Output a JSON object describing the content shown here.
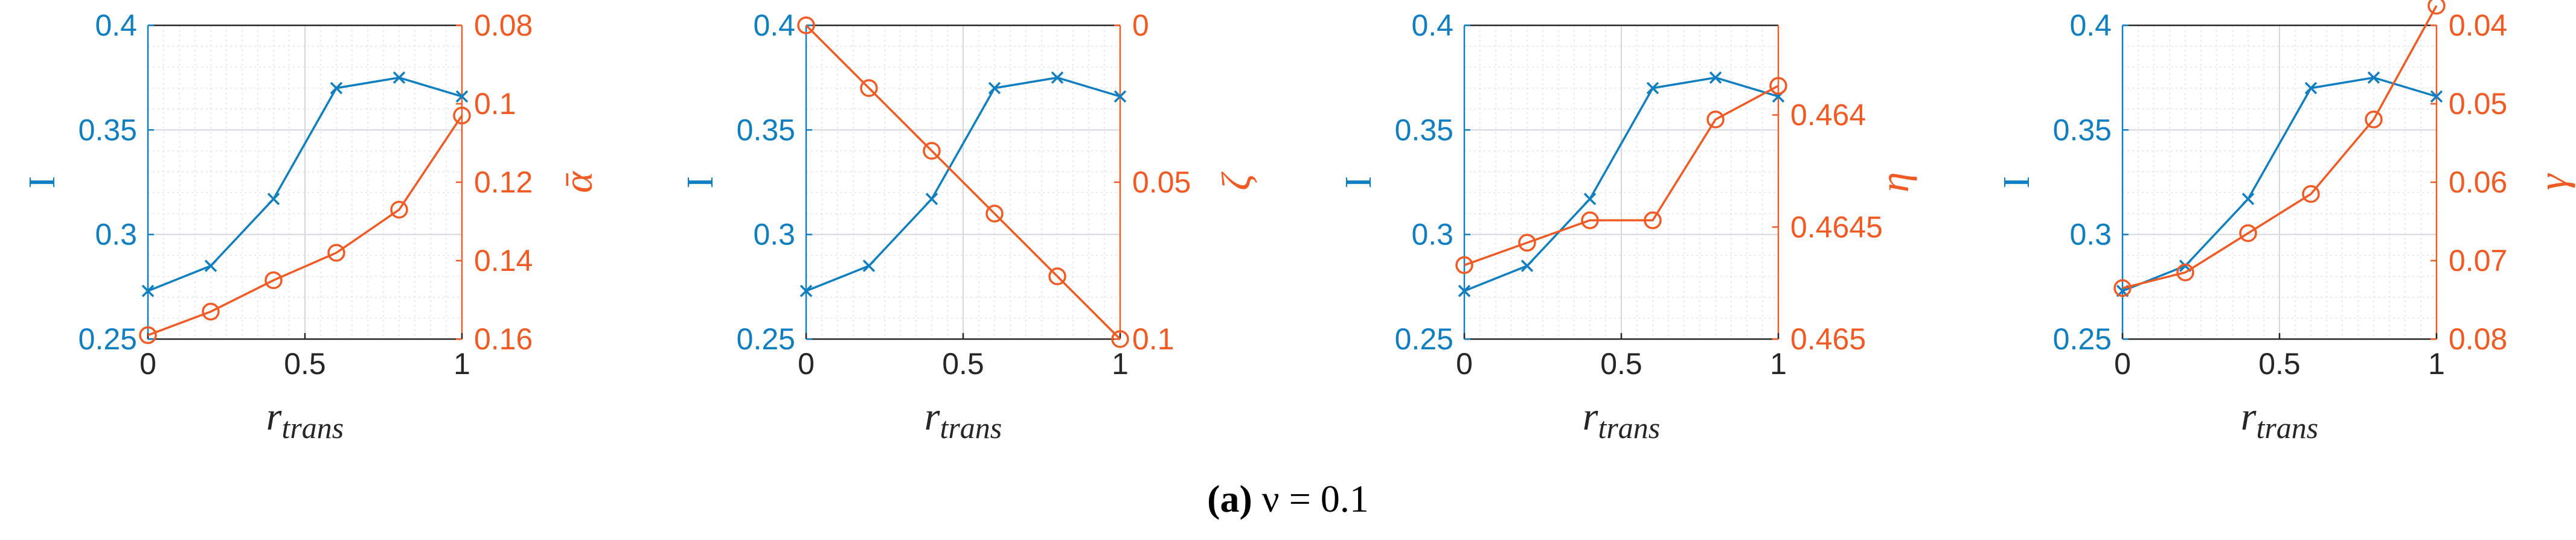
{
  "caption": {
    "label": "(a)",
    "text": "ν = 0.1"
  },
  "colors": {
    "left_series": "#0f7fc2",
    "right_series": "#f25a23",
    "grid": "#dfe3ea",
    "axis": "#262626"
  },
  "chart_data": [
    {
      "type": "line",
      "x": [
        0,
        0.2,
        0.4,
        0.6,
        0.8,
        1
      ],
      "x_ticks": [
        "0",
        "0.5",
        "1"
      ],
      "xlabel": {
        "main": "r",
        "sub": "trans"
      },
      "xlim": [
        0,
        1
      ],
      "grid": true,
      "left_axis": {
        "label": "I",
        "ylim": [
          0.25,
          0.4
        ],
        "ticks": [
          "0.25",
          "0.3",
          "0.35",
          "0.4"
        ],
        "marker": "x"
      },
      "right_axis": {
        "label": "ᾱ",
        "ylim": [
          0.16,
          0.08
        ],
        "reversed": true,
        "ticks": [
          "0.08",
          "0.1",
          "0.12",
          "0.14",
          "0.16"
        ],
        "marker": "o"
      },
      "series": [
        {
          "axis": "left",
          "values": [
            0.273,
            0.285,
            0.317,
            0.37,
            0.375,
            0.366
          ]
        },
        {
          "axis": "right",
          "values": [
            0.159,
            0.153,
            0.145,
            0.138,
            0.127,
            0.103
          ]
        }
      ]
    },
    {
      "type": "line",
      "x": [
        0,
        0.2,
        0.4,
        0.6,
        0.8,
        1
      ],
      "x_ticks": [
        "0",
        "0.5",
        "1"
      ],
      "xlabel": {
        "main": "r",
        "sub": "trans"
      },
      "xlim": [
        0,
        1
      ],
      "grid": true,
      "left_axis": {
        "label": "I",
        "ylim": [
          0.25,
          0.4
        ],
        "ticks": [
          "0.25",
          "0.3",
          "0.35",
          "0.4"
        ],
        "marker": "x"
      },
      "right_axis": {
        "label": "ζ",
        "ylim": [
          0.1,
          0
        ],
        "reversed": true,
        "ticks": [
          "0",
          "0.05",
          "0.1"
        ],
        "marker": "o"
      },
      "series": [
        {
          "axis": "left",
          "values": [
            0.273,
            0.285,
            0.317,
            0.37,
            0.375,
            0.366
          ]
        },
        {
          "axis": "right",
          "values": [
            0.0,
            0.02,
            0.04,
            0.06,
            0.08,
            0.1
          ]
        }
      ]
    },
    {
      "type": "line",
      "x": [
        0,
        0.2,
        0.4,
        0.6,
        0.8,
        1
      ],
      "x_ticks": [
        "0",
        "0.5",
        "1"
      ],
      "xlabel": {
        "main": "r",
        "sub": "trans"
      },
      "xlim": [
        0,
        1
      ],
      "grid": true,
      "left_axis": {
        "label": "I",
        "ylim": [
          0.25,
          0.4
        ],
        "ticks": [
          "0.25",
          "0.3",
          "0.35",
          "0.4"
        ],
        "marker": "x"
      },
      "right_axis": {
        "label": "η",
        "ylim": [
          0.465,
          0.4636
        ],
        "reversed": true,
        "ticks": [
          "0.4640",
          "0.4645",
          "0.465"
        ],
        "tick_values": [
          0.464,
          0.4645,
          0.465
        ],
        "tick_display": [
          "0.464",
          "0.4645",
          "0.465"
        ],
        "marker": "o"
      },
      "series": [
        {
          "axis": "left",
          "values": [
            0.273,
            0.285,
            0.317,
            0.37,
            0.375,
            0.366
          ]
        },
        {
          "axis": "right",
          "values": [
            0.46467,
            0.46457,
            0.46447,
            0.46447,
            0.46402,
            0.46387
          ]
        }
      ]
    },
    {
      "type": "line",
      "x": [
        0,
        0.2,
        0.4,
        0.6,
        0.8,
        1
      ],
      "x_ticks": [
        "0",
        "0.5",
        "1"
      ],
      "xlabel": {
        "main": "r",
        "sub": "trans"
      },
      "xlim": [
        0,
        1
      ],
      "grid": true,
      "left_axis": {
        "label": "I",
        "ylim": [
          0.25,
          0.4
        ],
        "ticks": [
          "0.25",
          "0.3",
          "0.35",
          "0.4"
        ],
        "marker": "x"
      },
      "right_axis": {
        "label": "γ",
        "ylim": [
          0.08,
          0.04
        ],
        "reversed": true,
        "ticks": [
          "0.04",
          "0.05",
          "0.06",
          "0.07",
          "0.08"
        ],
        "marker": "o"
      },
      "series": [
        {
          "axis": "left",
          "values": [
            0.273,
            0.285,
            0.317,
            0.37,
            0.375,
            0.366
          ]
        },
        {
          "axis": "right",
          "values": [
            0.0735,
            0.0715,
            0.0665,
            0.0615,
            0.052,
            0.0375
          ]
        }
      ]
    }
  ]
}
